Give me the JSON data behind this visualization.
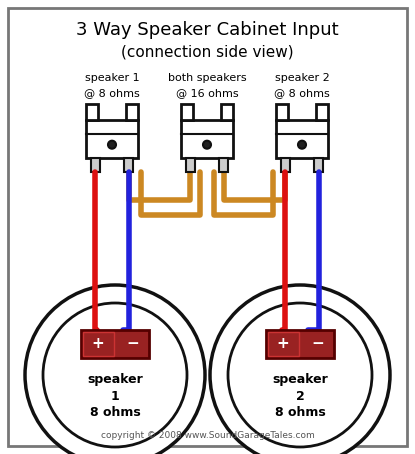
{
  "title": "3 Way Speaker Cabinet Input",
  "subtitle": "(connection side view)",
  "copyright": "copyright © 2008 www.SoundGarageTales.com",
  "bg_color": "#ffffff",
  "border_color": "#777777",
  "wire_red": "#dd1111",
  "wire_blue": "#2222dd",
  "wire_gold": "#cc8822",
  "labels": {
    "sp1_top": "speaker 1",
    "sp1_bot": "@ 8 ohms",
    "sp2_top": "both speakers",
    "sp2_bot": "@ 16 ohms",
    "sp3_top": "speaker 2",
    "sp3_bot": "@ 8 ohms"
  },
  "speaker1_label": [
    "speaker",
    "1",
    "8 ohms"
  ],
  "speaker2_label": [
    "speaker",
    "2",
    "8 ohms"
  ],
  "figw": 4.15,
  "figh": 4.54,
  "dpi": 100
}
